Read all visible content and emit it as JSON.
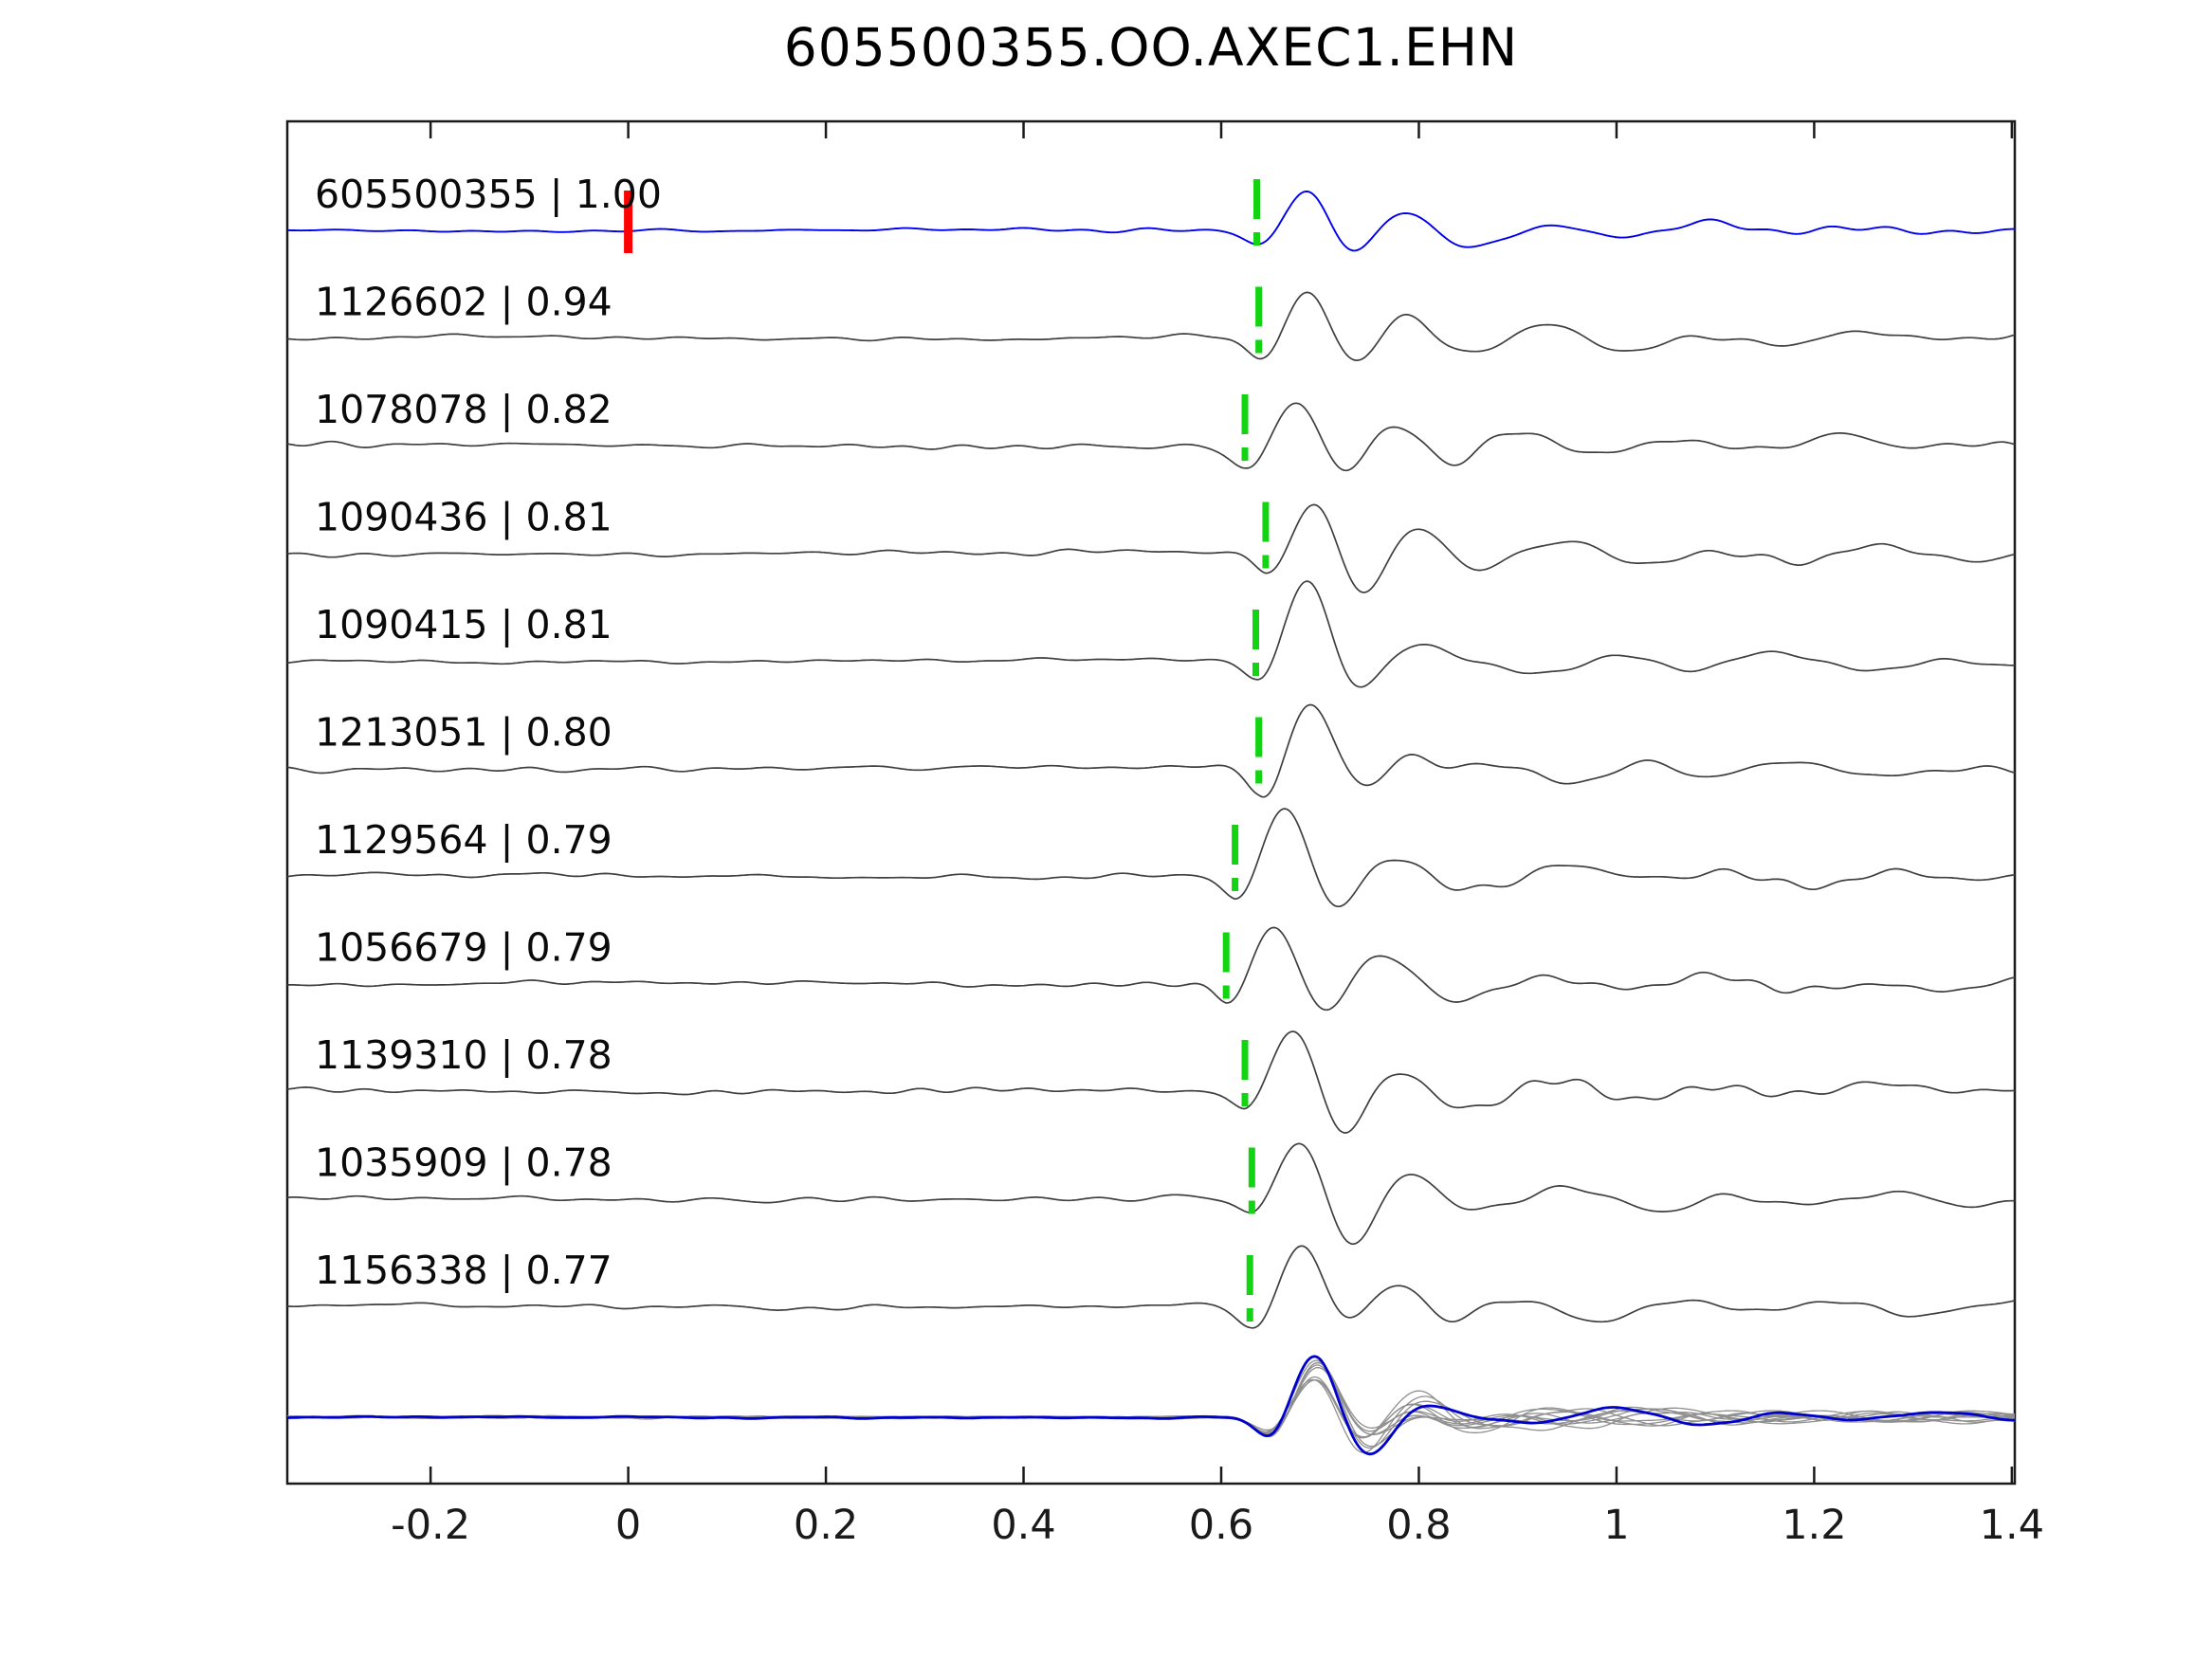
{
  "chart_data": {
    "type": "line",
    "title": "605500355.OO.AXEC1.EHN",
    "subtitle": "",
    "xlabel": "",
    "ylabel": "",
    "xlim": [
      -0.345,
      1.403
    ],
    "grid": false,
    "legend": null,
    "x_ticks": [
      {
        "value": -0.2,
        "label": "-0.2"
      },
      {
        "value": 0,
        "label": "0"
      },
      {
        "value": 0.2,
        "label": "0.2"
      },
      {
        "value": 0.4,
        "label": "0.4"
      },
      {
        "value": 0.6,
        "label": "0.6"
      },
      {
        "value": 0.8,
        "label": "0.8"
      },
      {
        "value": 1,
        "label": "1"
      },
      {
        "value": 1.2,
        "label": "1.2"
      },
      {
        "value": 1.4,
        "label": "1.4"
      }
    ],
    "colors": {
      "reference_trace": "#0000ee",
      "trace": "#3f3f3f",
      "pick_marker": "#12d412",
      "reference_marker": "#ff0000",
      "overlay_trace": "#8f8f8f",
      "overlay_reference": "#0000cc",
      "axis": "#1a1a1a"
    },
    "reference_marker_x": 0.0,
    "traces": [
      {
        "id": "605500355",
        "correlation": 1.0,
        "label": "605500355 | 1.00",
        "pick_x": 0.636,
        "is_reference": true
      },
      {
        "id": "1126602",
        "correlation": 0.94,
        "label": "1126602 | 0.94",
        "pick_x": 0.638,
        "is_reference": false
      },
      {
        "id": "1078078",
        "correlation": 0.82,
        "label": "1078078 | 0.82",
        "pick_x": 0.624,
        "is_reference": false
      },
      {
        "id": "1090436",
        "correlation": 0.81,
        "label": "1090436 | 0.81",
        "pick_x": 0.645,
        "is_reference": false
      },
      {
        "id": "1090415",
        "correlation": 0.81,
        "label": "1090415 | 0.81",
        "pick_x": 0.635,
        "is_reference": false
      },
      {
        "id": "1213051",
        "correlation": 0.8,
        "label": "1213051 | 0.80",
        "pick_x": 0.638,
        "is_reference": false
      },
      {
        "id": "1129564",
        "correlation": 0.79,
        "label": "1129564 | 0.79",
        "pick_x": 0.614,
        "is_reference": false
      },
      {
        "id": "1056679",
        "correlation": 0.79,
        "label": "1056679 | 0.79",
        "pick_x": 0.605,
        "is_reference": false
      },
      {
        "id": "1139310",
        "correlation": 0.78,
        "label": "1139310 | 0.78",
        "pick_x": 0.624,
        "is_reference": false
      },
      {
        "id": "1035909",
        "correlation": 0.78,
        "label": "1035909 | 0.78",
        "pick_x": 0.631,
        "is_reference": false
      },
      {
        "id": "1156338",
        "correlation": 0.77,
        "label": "1156338 | 0.77",
        "pick_x": 0.629,
        "is_reference": false
      }
    ],
    "overlay": {
      "present": true,
      "aligned_pick_x": 0.645,
      "description": "all traces superimposed, reference in blue"
    }
  }
}
